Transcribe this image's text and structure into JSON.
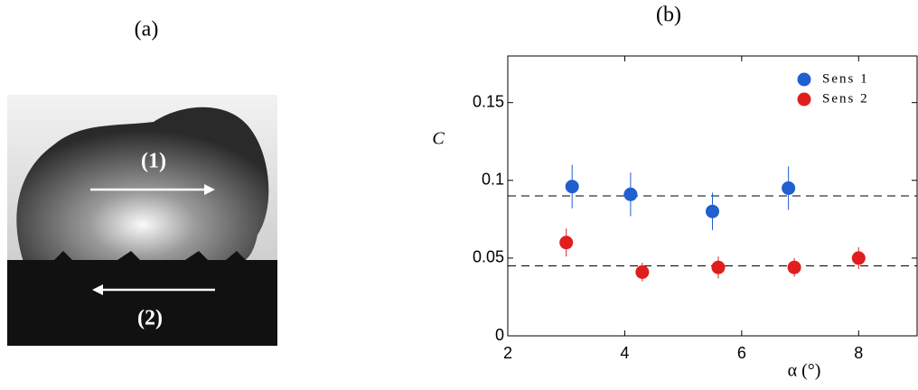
{
  "photo": {
    "label": "(a)",
    "annotations": [
      "(1)",
      "(2)"
    ]
  },
  "chart_data": {
    "type": "scatter",
    "title": "(b)",
    "ylabel": "C",
    "xlabel": "α (°)",
    "xlim": [
      2,
      9
    ],
    "xticks": [
      2,
      4,
      6,
      8
    ],
    "ylim": [
      0,
      0.18
    ],
    "yticks": [
      0,
      0.05,
      0.1,
      0.15
    ],
    "hlines": [
      0.09,
      0.045
    ],
    "series": [
      {
        "name": "Sens 1",
        "color": "#1f5fcf",
        "x": [
          3.1,
          4.1,
          5.5,
          6.8
        ],
        "values": [
          0.096,
          0.091,
          0.08,
          0.095
        ],
        "errors": [
          0.014,
          0.014,
          0.012,
          0.014
        ]
      },
      {
        "name": "Sens 2",
        "color": "#e01e1e",
        "x": [
          3.0,
          4.3,
          5.6,
          6.9,
          8.0
        ],
        "values": [
          0.06,
          0.041,
          0.044,
          0.044,
          0.05
        ],
        "errors": [
          0.009,
          0.006,
          0.007,
          0.006,
          0.007
        ]
      }
    ]
  }
}
